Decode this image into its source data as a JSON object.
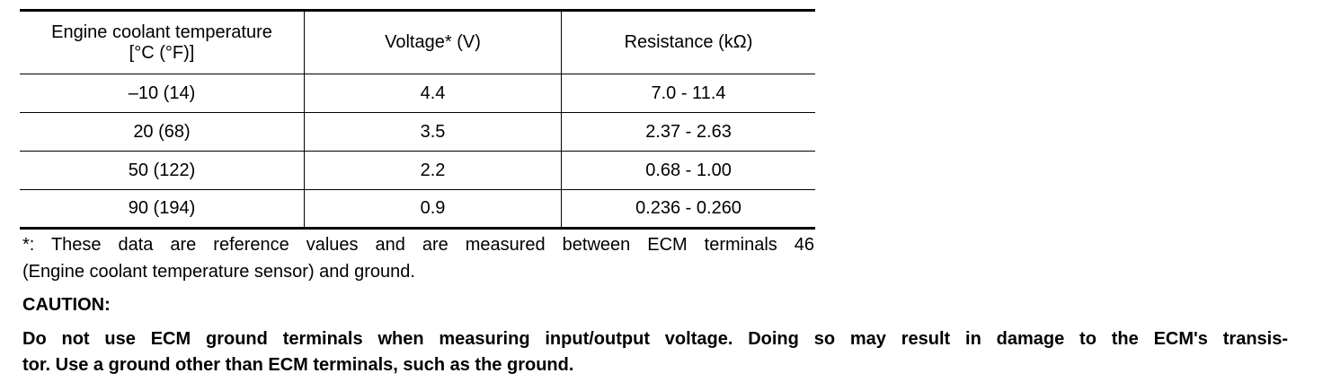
{
  "table": {
    "header": [
      [
        "Engine coolant temperature",
        "[°C (°F)]"
      ],
      "Voltage* (V)",
      "Resistance (kΩ)"
    ],
    "rows": [
      [
        "–10 (14)",
        "4.4",
        "7.0 - 11.4"
      ],
      [
        "20 (68)",
        "3.5",
        "2.37 - 2.63"
      ],
      [
        "50 (122)",
        "2.2",
        "0.68 - 1.00"
      ],
      [
        "90 (194)",
        "0.9",
        "0.236 - 0.260"
      ]
    ]
  },
  "footnote": [
    "*: These data are reference values and are measured between ECM terminals 46",
    "(Engine coolant temperature sensor) and ground."
  ],
  "caution": {
    "title": "CAUTION:",
    "lines": [
      "Do not use ECM ground terminals when measuring input/output voltage. Doing so may result in damage to the ECM's transis-",
      "tor. Use a ground other than ECM terminals, such as the ground."
    ]
  }
}
